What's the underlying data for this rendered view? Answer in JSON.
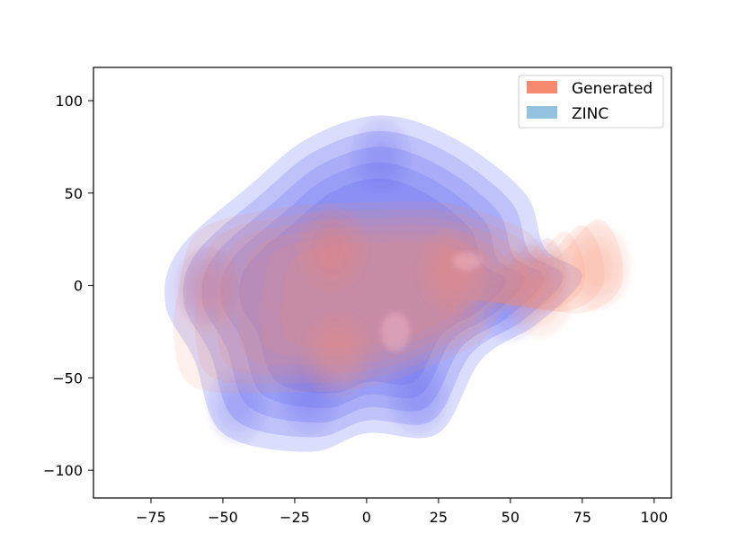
{
  "chart_data": {
    "type": "kde-density-contour",
    "title": "",
    "xlabel": "",
    "ylabel": "",
    "xlim": [
      -95,
      106
    ],
    "ylim": [
      -115,
      118
    ],
    "x_ticks": [
      -75,
      -50,
      -25,
      0,
      25,
      50,
      75,
      100
    ],
    "x_tick_labels": [
      "−75",
      "−50",
      "−25",
      "0",
      "25",
      "50",
      "75",
      "100"
    ],
    "y_ticks": [
      -100,
      -50,
      0,
      50,
      100
    ],
    "y_tick_labels": [
      "−100",
      "−50",
      "0",
      "50",
      "100"
    ],
    "grid": false,
    "legend_position": "top-right",
    "series": [
      {
        "name": "Generated",
        "color": "#f58a6e",
        "outer_boundary": [
          [
            -58,
            30
          ],
          [
            -30,
            42
          ],
          [
            0,
            45
          ],
          [
            30,
            44
          ],
          [
            55,
            30
          ],
          [
            65,
            15
          ],
          [
            80,
            36
          ],
          [
            88,
            20
          ],
          [
            88,
            -2
          ],
          [
            75,
            -15
          ],
          [
            50,
            -12
          ],
          [
            40,
            -30
          ],
          [
            20,
            -45
          ],
          [
            0,
            -55
          ],
          [
            -30,
            -58
          ],
          [
            -60,
            -55
          ],
          [
            -67,
            -30
          ],
          [
            -65,
            0
          ]
        ],
        "density_peaks": [
          [
            -12,
            20
          ],
          [
            -10,
            -38
          ],
          [
            -55,
            -2
          ],
          [
            30,
            8
          ],
          [
            80,
            10
          ],
          [
            60,
            -5
          ]
        ]
      },
      {
        "name": "ZINC",
        "color": "#5a64f0",
        "outer_boundary": [
          [
            -40,
            55
          ],
          [
            -20,
            80
          ],
          [
            5,
            92
          ],
          [
            30,
            80
          ],
          [
            55,
            50
          ],
          [
            62,
            20
          ],
          [
            75,
            5
          ],
          [
            60,
            -20
          ],
          [
            40,
            -40
          ],
          [
            25,
            -80
          ],
          [
            0,
            -80
          ],
          [
            -20,
            -90
          ],
          [
            -50,
            -80
          ],
          [
            -60,
            -40
          ],
          [
            -70,
            -10
          ],
          [
            -65,
            20
          ]
        ],
        "density_peaks": [
          [
            -12,
            20
          ],
          [
            5,
            70
          ],
          [
            -55,
            0
          ],
          [
            50,
            -10
          ],
          [
            -20,
            -60
          ],
          [
            18,
            -60
          ],
          [
            -45,
            -65
          ],
          [
            60,
            5
          ]
        ]
      }
    ]
  }
}
